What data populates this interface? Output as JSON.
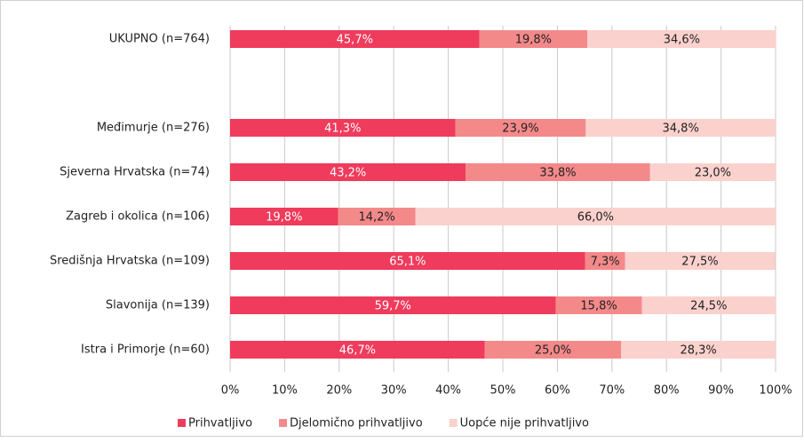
{
  "chart_data": {
    "type": "stacked_barh",
    "categories": [
      "UKUPNO (n=764)",
      null,
      "Međimurje (n=276)",
      "Sjeverna Hrvatska (n=74)",
      "Zagreb i okolica (n=106)",
      "Središnja Hrvatska (n=109)",
      "Slavonija (n=139)",
      "Istra i Primorje (n=60)"
    ],
    "series": [
      {
        "name": "Prihvatljivo",
        "color": "#ef3b5c",
        "values": [
          45.7,
          null,
          41.3,
          43.2,
          19.8,
          65.1,
          59.7,
          46.7
        ],
        "value_labels": [
          "45,7%",
          null,
          "41,3%",
          "43,2%",
          "19,8%",
          "65,1%",
          "59,7%",
          "46,7%"
        ]
      },
      {
        "name": "Djelomično prihvatljivo",
        "color": "#f4898a",
        "values": [
          19.8,
          null,
          23.9,
          33.8,
          14.2,
          7.3,
          15.8,
          25.0
        ],
        "value_labels": [
          "19,8%",
          null,
          "23,9%",
          "33,8%",
          "14,2%",
          "7,3%",
          "15,8%",
          "25,0%"
        ]
      },
      {
        "name": "Uopće nije prihvatljivo",
        "color": "#fbd1cd",
        "values": [
          34.6,
          null,
          34.8,
          23.0,
          66.0,
          27.5,
          24.5,
          28.3
        ],
        "value_labels": [
          "34,6%",
          null,
          "34,8%",
          "23,0%",
          "66,0%",
          "27,5%",
          "24,5%",
          "28,3%"
        ]
      }
    ],
    "xlim": [
      0,
      100
    ],
    "xticks": [
      {
        "value": 0,
        "label": "0%"
      },
      {
        "value": 10,
        "label": "10%"
      },
      {
        "value": 20,
        "label": "20%"
      },
      {
        "value": 30,
        "label": "30%"
      },
      {
        "value": 40,
        "label": "40%"
      },
      {
        "value": 50,
        "label": "50%"
      },
      {
        "value": 60,
        "label": "60%"
      },
      {
        "value": 70,
        "label": "70%"
      },
      {
        "value": 80,
        "label": "80%"
      },
      {
        "value": 90,
        "label": "90%"
      },
      {
        "value": 100,
        "label": "100%"
      }
    ],
    "grid": true,
    "legend": "bottom"
  }
}
